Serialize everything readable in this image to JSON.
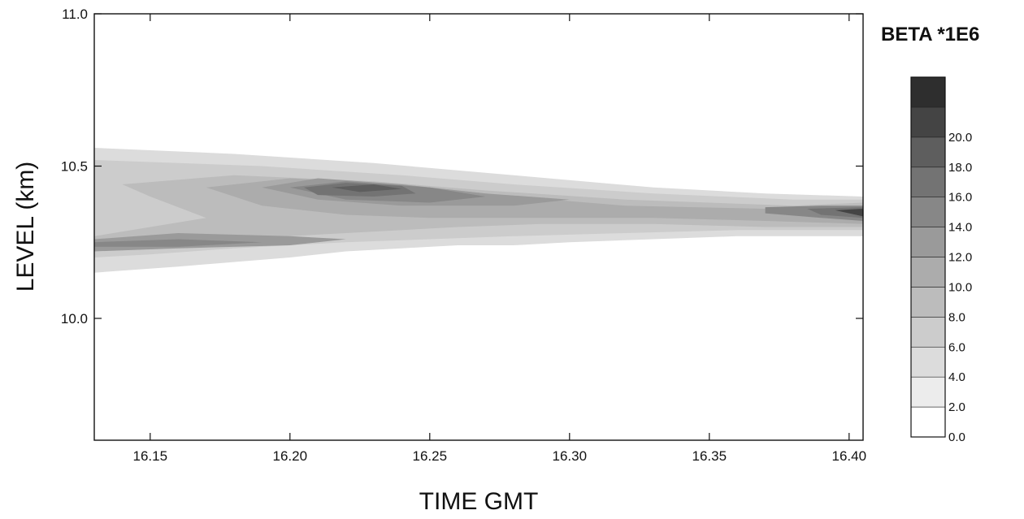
{
  "chart_data": {
    "type": "heatmap",
    "title": "",
    "xlabel": "TIME GMT",
    "ylabel": "LEVEL (km)",
    "x_ticks": [
      "16.15",
      "16.20",
      "16.25",
      "16.30",
      "16.35",
      "16.40"
    ],
    "y_ticks": [
      "11.0",
      "10.5",
      "10.0"
    ],
    "xlim": [
      16.13,
      16.405
    ],
    "ylim": [
      9.6,
      11.0
    ],
    "grid": false,
    "colorbar": {
      "title": "BETA *1E6",
      "levels": [
        "0.0",
        "2.0",
        "4.0",
        "6.0",
        "8.0",
        "10.0",
        "12.0",
        "14.0",
        "16.0",
        "18.0",
        "20.0"
      ],
      "level_values": [
        0,
        2,
        4,
        6,
        8,
        10,
        12,
        14,
        16,
        18,
        20
      ],
      "colors": [
        "#ffffff",
        "#ececec",
        "#dcdcdc",
        "#cccccc",
        "#bcbcbc",
        "#acacac",
        "#9a9a9a",
        "#878787",
        "#737373",
        "#5e5e5e",
        "#444444",
        "#2e2e2e"
      ]
    },
    "layers": [
      {
        "level_min": 2,
        "points": [
          [
            16.13,
            10.56
          ],
          [
            16.18,
            10.54
          ],
          [
            16.23,
            10.51
          ],
          [
            16.28,
            10.47
          ],
          [
            16.33,
            10.43
          ],
          [
            16.37,
            10.41
          ],
          [
            16.405,
            10.4
          ],
          [
            16.405,
            10.27
          ],
          [
            16.36,
            10.27
          ],
          [
            16.33,
            10.26
          ],
          [
            16.3,
            10.25
          ],
          [
            16.28,
            10.24
          ],
          [
            16.26,
            10.24
          ],
          [
            16.24,
            10.23
          ],
          [
            16.22,
            10.22
          ],
          [
            16.2,
            10.2
          ],
          [
            16.16,
            10.17
          ],
          [
            16.13,
            10.15
          ]
        ]
      },
      {
        "level_min": 4,
        "points": [
          [
            16.13,
            10.52
          ],
          [
            16.19,
            10.5
          ],
          [
            16.24,
            10.47
          ],
          [
            16.28,
            10.44
          ],
          [
            16.33,
            10.41
          ],
          [
            16.38,
            10.39
          ],
          [
            16.405,
            10.39
          ],
          [
            16.405,
            10.29
          ],
          [
            16.36,
            10.29
          ],
          [
            16.32,
            10.28
          ],
          [
            16.28,
            10.27
          ],
          [
            16.25,
            10.26
          ],
          [
            16.22,
            10.25
          ],
          [
            16.18,
            10.23
          ],
          [
            16.15,
            10.21
          ],
          [
            16.13,
            10.2
          ]
        ]
      },
      {
        "level_min": 6,
        "points": [
          [
            16.14,
            10.44
          ],
          [
            16.18,
            10.47
          ],
          [
            16.23,
            10.45
          ],
          [
            16.27,
            10.42
          ],
          [
            16.32,
            10.39
          ],
          [
            16.38,
            10.37
          ],
          [
            16.405,
            10.38
          ],
          [
            16.405,
            10.3
          ],
          [
            16.37,
            10.3
          ],
          [
            16.33,
            10.31
          ],
          [
            16.29,
            10.31
          ],
          [
            16.26,
            10.3
          ],
          [
            16.22,
            10.28
          ],
          [
            16.18,
            10.26
          ],
          [
            16.15,
            10.24
          ],
          [
            16.13,
            10.22
          ],
          [
            16.13,
            10.27
          ],
          [
            16.17,
            10.33
          ],
          [
            16.15,
            10.4
          ]
        ]
      },
      {
        "level_min": 8,
        "points": [
          [
            16.17,
            10.43
          ],
          [
            16.2,
            10.46
          ],
          [
            16.24,
            10.44
          ],
          [
            16.28,
            10.4
          ],
          [
            16.32,
            10.37
          ],
          [
            16.37,
            10.36
          ],
          [
            16.405,
            10.37
          ],
          [
            16.405,
            10.31
          ],
          [
            16.37,
            10.32
          ],
          [
            16.33,
            10.33
          ],
          [
            16.29,
            10.33
          ],
          [
            16.25,
            10.33
          ],
          [
            16.22,
            10.34
          ],
          [
            16.19,
            10.37
          ]
        ]
      },
      {
        "level_min": 10,
        "points": [
          [
            16.13,
            10.26
          ],
          [
            16.16,
            10.28
          ],
          [
            16.2,
            10.27
          ],
          [
            16.22,
            10.26
          ],
          [
            16.2,
            10.24
          ],
          [
            16.16,
            10.23
          ],
          [
            16.13,
            10.22
          ]
        ]
      },
      {
        "level_min": 10,
        "points": [
          [
            16.19,
            10.43
          ],
          [
            16.21,
            10.46
          ],
          [
            16.24,
            10.44
          ],
          [
            16.27,
            10.41
          ],
          [
            16.3,
            10.39
          ],
          [
            16.28,
            10.37
          ],
          [
            16.24,
            10.37
          ],
          [
            16.21,
            10.39
          ]
        ]
      },
      {
        "level_min": 12,
        "points": [
          [
            16.2,
            10.43
          ],
          [
            16.22,
            10.45
          ],
          [
            16.25,
            10.43
          ],
          [
            16.27,
            10.4
          ],
          [
            16.25,
            10.38
          ],
          [
            16.22,
            10.39
          ]
        ]
      },
      {
        "level_min": 12,
        "points": [
          [
            16.13,
            10.25
          ],
          [
            16.16,
            10.26
          ],
          [
            16.19,
            10.25
          ],
          [
            16.16,
            10.235
          ],
          [
            16.13,
            10.235
          ]
        ]
      },
      {
        "level_min": 12,
        "points": [
          [
            16.37,
            10.365
          ],
          [
            16.39,
            10.37
          ],
          [
            16.405,
            10.37
          ],
          [
            16.405,
            10.32
          ],
          [
            16.39,
            10.33
          ],
          [
            16.37,
            10.345
          ]
        ]
      },
      {
        "level_min": 14,
        "points": [
          [
            16.205,
            10.43
          ],
          [
            16.22,
            10.445
          ],
          [
            16.24,
            10.435
          ],
          [
            16.245,
            10.41
          ],
          [
            16.23,
            10.4
          ],
          [
            16.21,
            10.405
          ]
        ]
      },
      {
        "level_min": 14,
        "points": [
          [
            16.385,
            10.36
          ],
          [
            16.405,
            10.365
          ],
          [
            16.405,
            10.33
          ],
          [
            16.39,
            10.34
          ]
        ]
      },
      {
        "level_min": 16,
        "points": [
          [
            16.215,
            10.43
          ],
          [
            16.23,
            10.44
          ],
          [
            16.24,
            10.425
          ],
          [
            16.225,
            10.415
          ]
        ]
      },
      {
        "level_min": 18,
        "points": [
          [
            16.395,
            10.355
          ],
          [
            16.405,
            10.36
          ],
          [
            16.405,
            10.335
          ]
        ]
      }
    ]
  }
}
